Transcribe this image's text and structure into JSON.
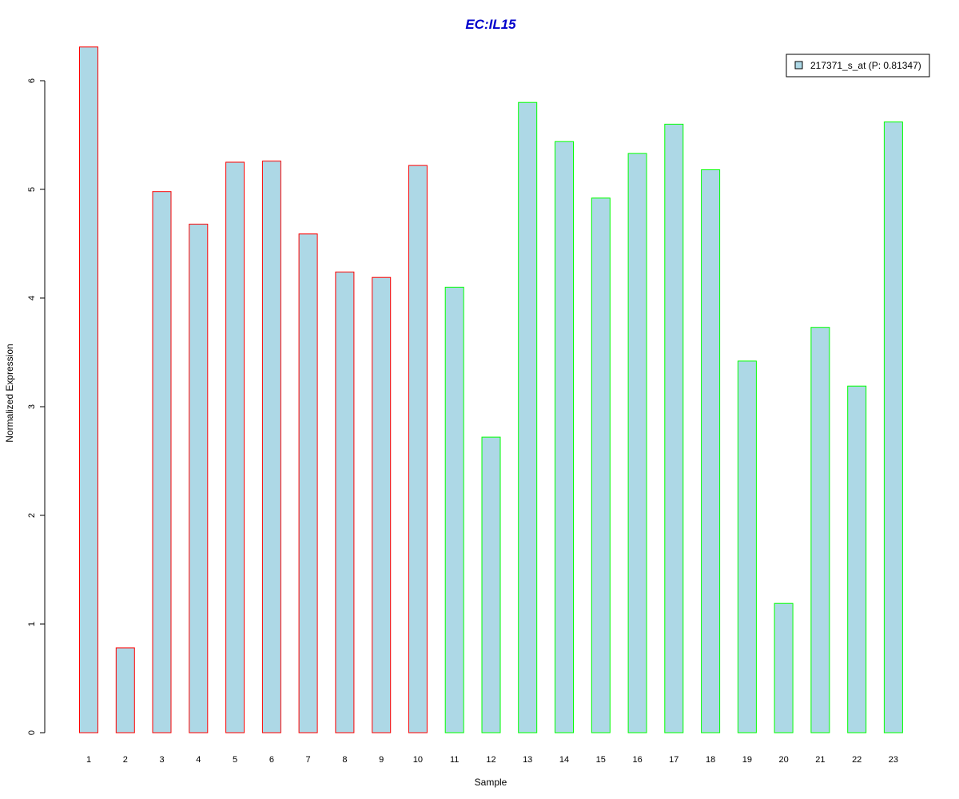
{
  "chart_data": {
    "type": "bar",
    "title": "EC:IL15",
    "title_color": "#0000CC",
    "xlabel": "Sample",
    "ylabel": "Normalized Expression",
    "ylim": [
      0,
      6.3
    ],
    "yticks": [
      0,
      1,
      2,
      3,
      4,
      5,
      6
    ],
    "grid": false,
    "legend_position": "top-right",
    "fill_color": "#ADD8E6",
    "group_colors": {
      "group1": "#FF0000",
      "group2": "#00FF00"
    },
    "categories": [
      "1",
      "2",
      "3",
      "4",
      "5",
      "6",
      "7",
      "8",
      "9",
      "10",
      "11",
      "12",
      "13",
      "14",
      "15",
      "16",
      "17",
      "18",
      "19",
      "20",
      "21",
      "22",
      "23"
    ],
    "series": [
      {
        "name": "217371_s_at (P: 0.81347)",
        "values": [
          6.31,
          0.78,
          4.98,
          4.68,
          5.25,
          5.26,
          4.59,
          4.24,
          4.19,
          5.22,
          4.1,
          2.72,
          5.8,
          5.44,
          4.92,
          5.33,
          5.6,
          5.18,
          3.42,
          1.19,
          3.73,
          3.19,
          5.62
        ],
        "groups": [
          "group1",
          "group1",
          "group1",
          "group1",
          "group1",
          "group1",
          "group1",
          "group1",
          "group1",
          "group1",
          "group2",
          "group2",
          "group2",
          "group2",
          "group2",
          "group2",
          "group2",
          "group2",
          "group2",
          "group2",
          "group2",
          "group2",
          "group2"
        ]
      }
    ]
  }
}
